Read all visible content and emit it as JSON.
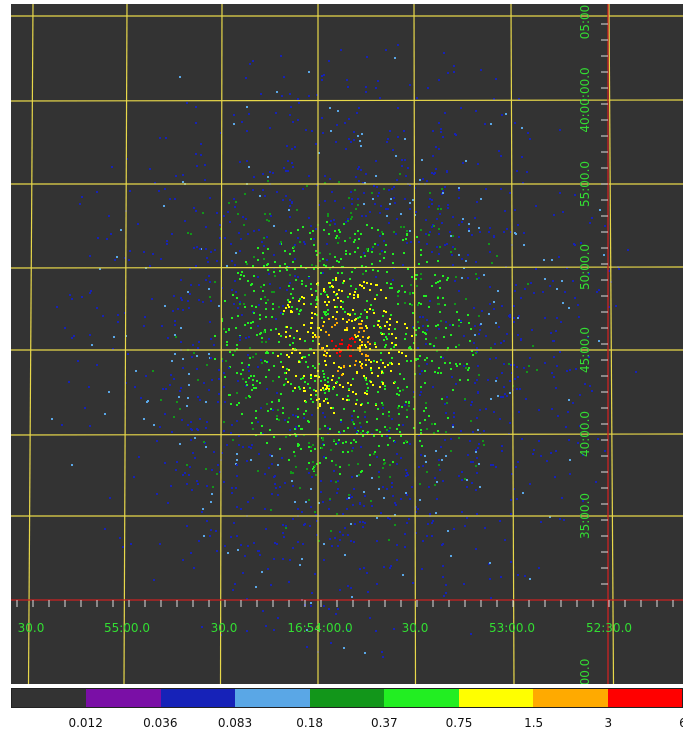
{
  "image": {
    "background_color": "#333333",
    "grid_color": "#e8d84a",
    "crosshair_color": "#cc2222",
    "label_color": "#33dd33"
  },
  "ra_labels": [
    "30.0",
    "55:00.0",
    "30.0",
    "16:54:00.0",
    "30.0",
    "53:00.0",
    "52:30.0"
  ],
  "dec_labels": [
    "05:00",
    "40:00:00.0",
    "55:00.0",
    "50:00.0",
    "45:00.0",
    "40:00.0",
    "35:00.0",
    "00.0"
  ],
  "colorbar": {
    "colors": [
      "#333333",
      "#7a0fa6",
      "#1622b8",
      "#5aa7e6",
      "#12961a",
      "#22ee22",
      "#ffff00",
      "#ffaa00",
      "#ff0000"
    ],
    "tick_labels": [
      "0.012",
      "0.036",
      "0.083",
      "0.18",
      "0.37",
      "0.75",
      "1.5",
      "3",
      "6"
    ]
  }
}
